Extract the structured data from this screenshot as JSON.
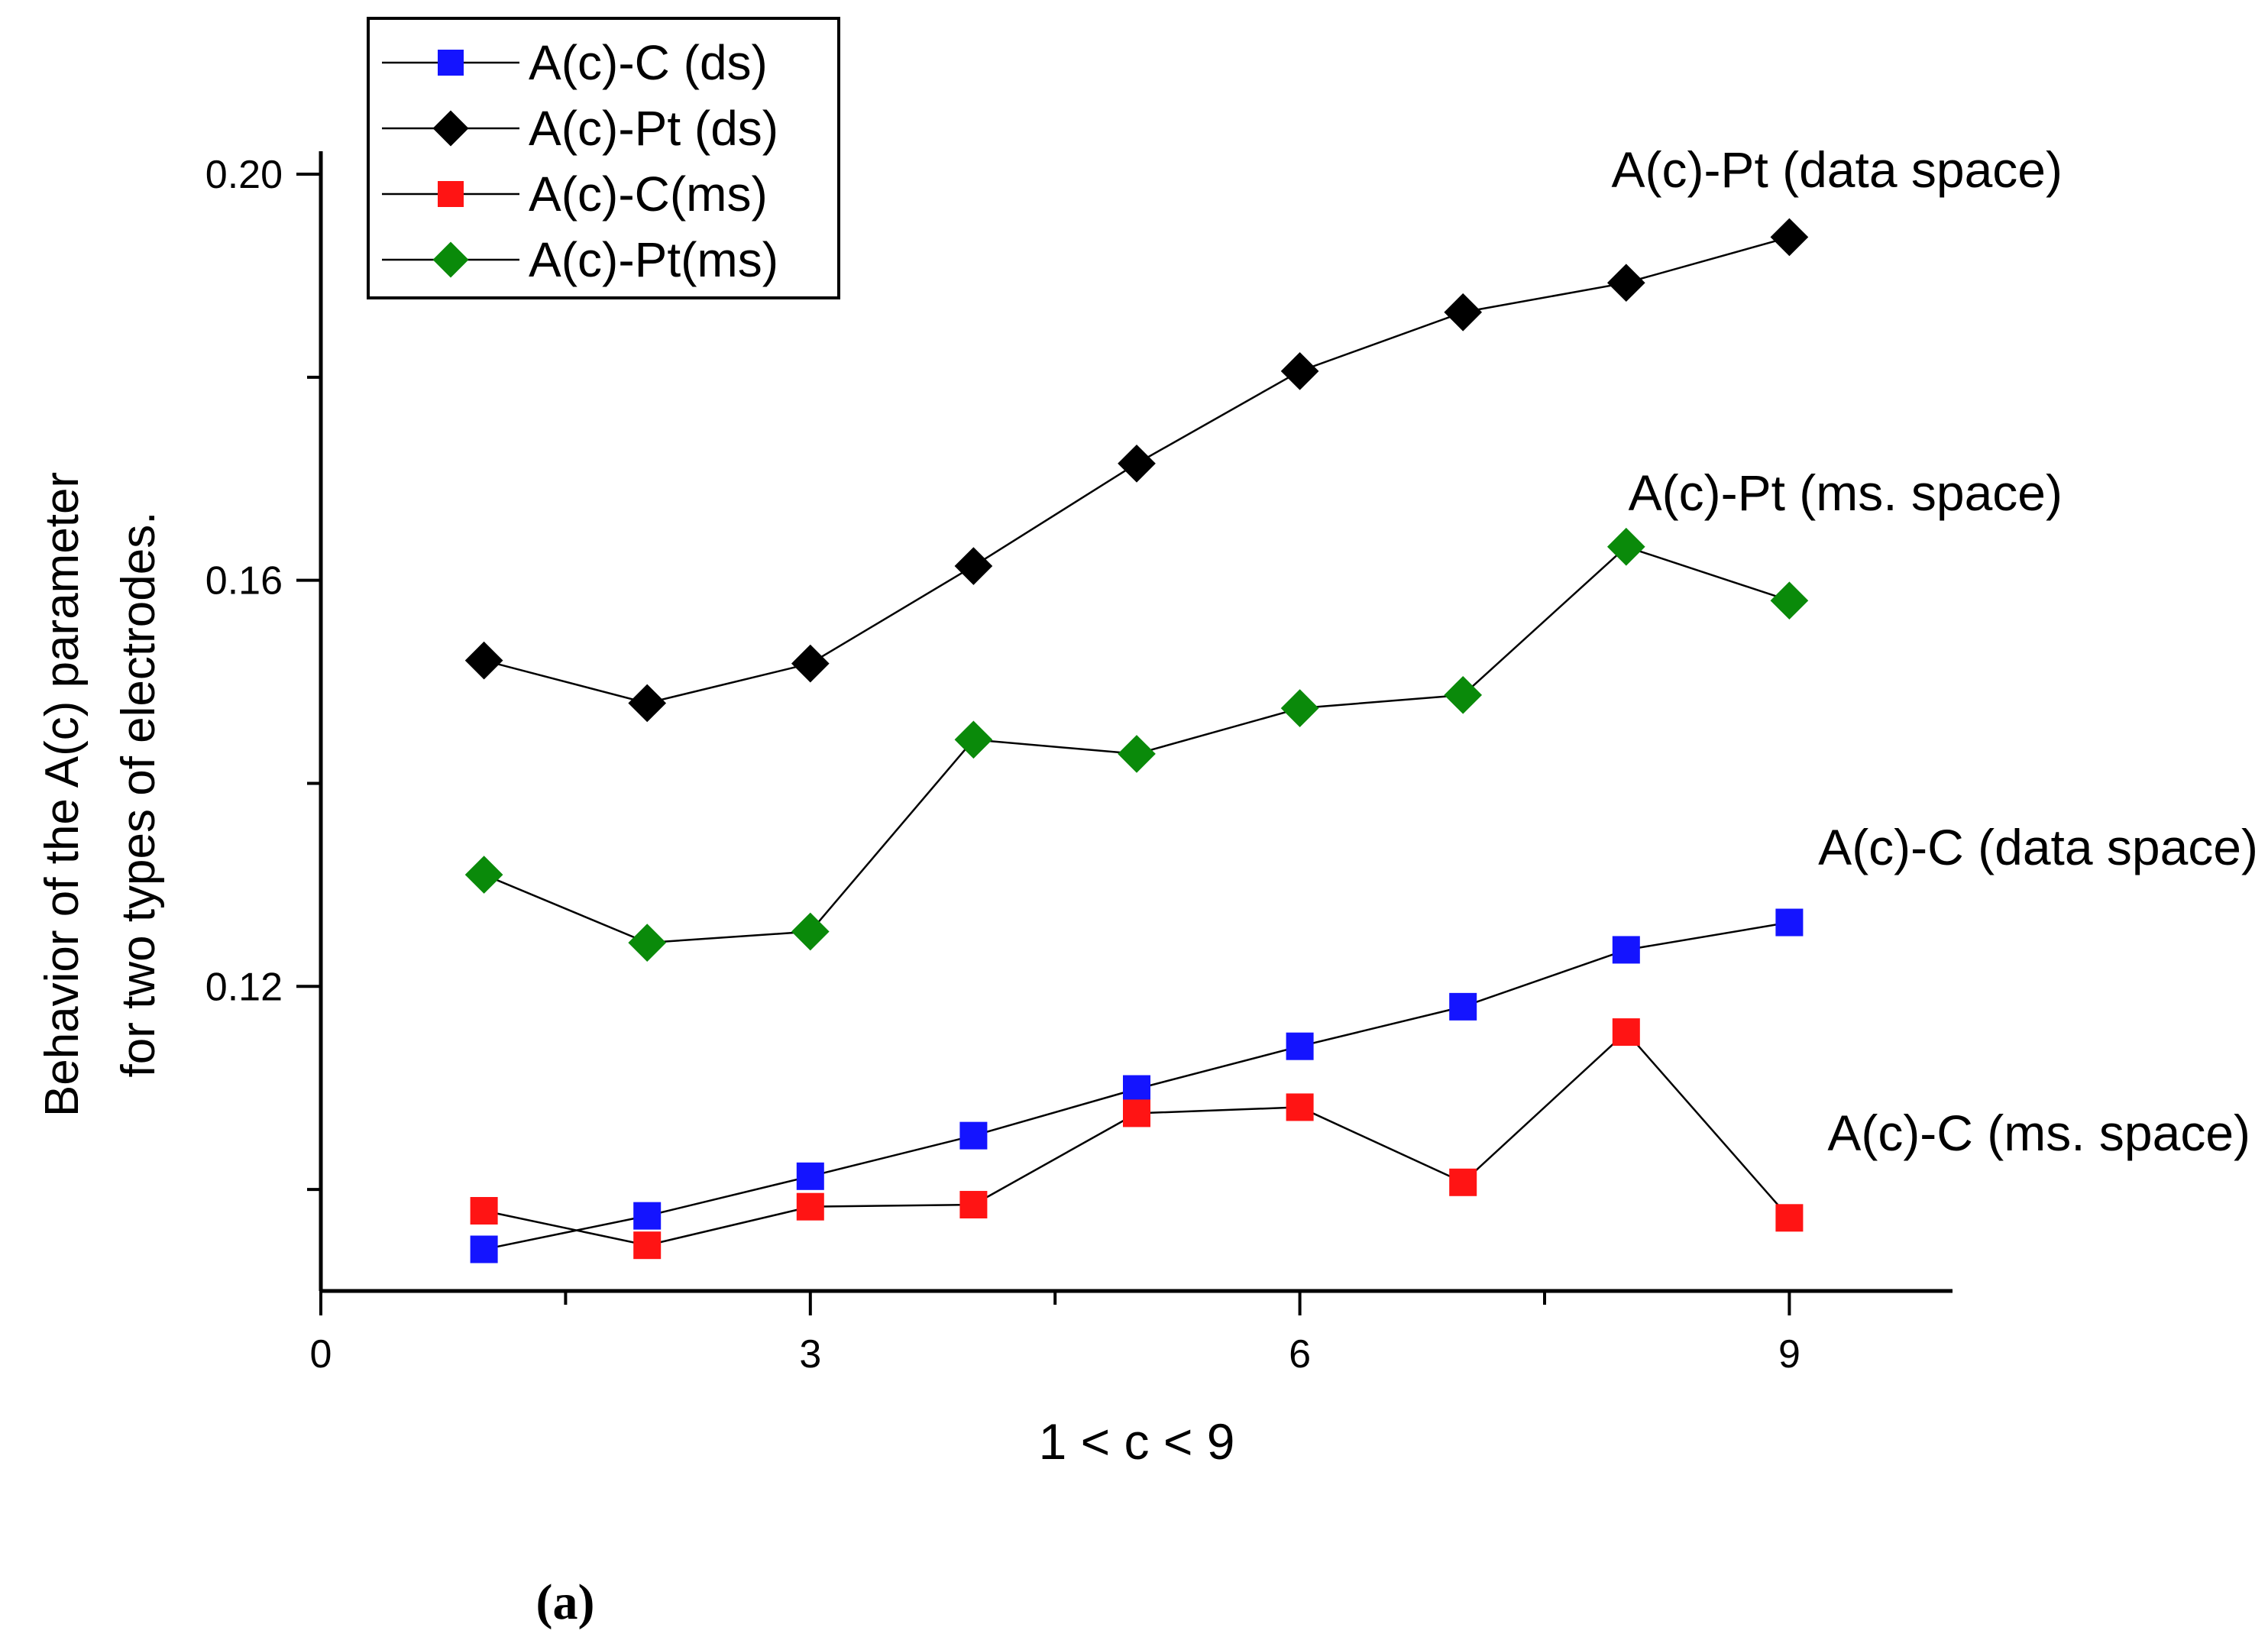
{
  "chart_data": {
    "type": "line",
    "title": "",
    "xlabel": "1 < c < 9",
    "ylabel_lines": [
      "Behavior of the A(c) parameter",
      "for two types of electrodes."
    ],
    "xlim": [
      0,
      10
    ],
    "ylim": [
      0.09,
      0.2
    ],
    "x_ticks": [
      0,
      3,
      6,
      9
    ],
    "x_minor_ticks": [
      1.5,
      4.5,
      7.5
    ],
    "y_ticks": [
      0.12,
      0.16,
      0.2
    ],
    "y_minor_ticks": [
      0.1,
      0.14,
      0.18
    ],
    "y_tick_labels": [
      "0.12",
      "0.16",
      "0.20"
    ],
    "x_tick_labels": [
      "0",
      "3",
      "6",
      "9"
    ],
    "legend_position": "top-left",
    "series": [
      {
        "name": "A(c)-C (ds)",
        "color": "#1414ff",
        "marker": "square",
        "x": [
          1,
          2,
          3,
          4,
          5,
          6,
          7,
          8,
          9
        ],
        "values": [
          0.0941,
          0.0974,
          0.1013,
          0.1053,
          0.1099,
          0.1141,
          0.118,
          0.1236,
          0.1263
        ]
      },
      {
        "name": "A(c)-Pt (ds)",
        "color": "#000000",
        "marker": "diamond",
        "x": [
          1,
          2,
          3,
          4,
          5,
          6,
          7,
          8,
          9
        ],
        "values": [
          0.1521,
          0.1479,
          0.1518,
          0.1614,
          0.1715,
          0.1806,
          0.1864,
          0.1893,
          0.1938
        ]
      },
      {
        "name": "A(c)-C(ms)",
        "color": "#ff1414",
        "marker": "square",
        "x": [
          1,
          2,
          3,
          4,
          5,
          6,
          7,
          8,
          9
        ],
        "values": [
          0.0979,
          0.0945,
          0.0983,
          0.0985,
          0.1075,
          0.1081,
          0.1007,
          0.1155,
          0.0972
        ]
      },
      {
        "name": "A(c)-Pt(ms)",
        "color": "#0a8a0a",
        "marker": "diamond",
        "x": [
          1,
          2,
          3,
          4,
          5,
          6,
          7,
          8,
          9
        ],
        "values": [
          0.131,
          0.1243,
          0.1254,
          0.1443,
          0.1429,
          0.1474,
          0.1487,
          0.1633,
          0.158
        ]
      }
    ],
    "annotations": [
      {
        "text": "A(c)-Pt (data space)",
        "series": "A(c)-Pt (ds)"
      },
      {
        "text": "A(c)-Pt (ms. space)",
        "series": "A(c)-Pt(ms)"
      },
      {
        "text": "A(c)-C (data space)",
        "series": "A(c)-C (ds)"
      },
      {
        "text": "A(c)-C (ms. space)",
        "series": "A(c)-C(ms)"
      }
    ]
  },
  "caption": "(a)"
}
